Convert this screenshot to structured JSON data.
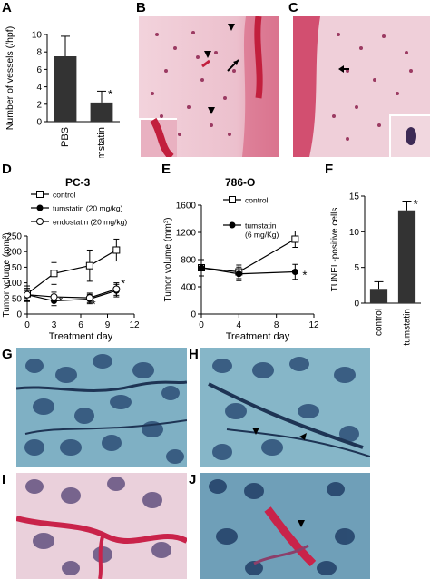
{
  "panel_labels": {
    "A": "A",
    "B": "B",
    "C": "C",
    "D": "D",
    "E": "E",
    "F": "F",
    "G": "G",
    "H": "H",
    "I": "I",
    "J": "J"
  },
  "colors": {
    "bar": "#333333",
    "he_pink": "#e7a6b8",
    "he_red": "#cc2a44",
    "ihc_blue": "#5a8ea8",
    "ihc_dark": "#203a5e"
  },
  "chart_data": [
    {
      "panel": "A",
      "type": "bar",
      "categories": [
        "PBS",
        "tumstatin"
      ],
      "values": [
        7.5,
        2.2
      ],
      "errors": [
        2.3,
        1.3
      ],
      "annotations": [
        "",
        "*"
      ],
      "ylabel": "Number of vessels (/hpf)",
      "ylim": [
        0,
        10
      ],
      "yticks": [
        "0",
        "2",
        "4",
        "6",
        "8",
        "10"
      ]
    },
    {
      "panel": "D",
      "type": "line",
      "title": "PC-3",
      "x": [
        0,
        3,
        7,
        10
      ],
      "series": [
        {
          "name": "control",
          "marker": "open-square",
          "values": [
            65,
            130,
            155,
            205
          ],
          "errors": [
            25,
            35,
            50,
            35
          ]
        },
        {
          "name": "tumstatin (20 mg/kg)",
          "marker": "filled-circle",
          "values": [
            62,
            42,
            48,
            75
          ],
          "errors": [
            20,
            15,
            15,
            20
          ]
        },
        {
          "name": "endostatin (20 mg/kg)",
          "marker": "open-circle",
          "values": [
            62,
            55,
            52,
            80
          ],
          "errors": [
            20,
            15,
            15,
            20
          ]
        }
      ],
      "star_labels": [
        "*",
        "*",
        "*"
      ],
      "xlabel": "Treatment day",
      "ylabel": "Tumor volume (mm³)",
      "xlim": [
        0,
        12
      ],
      "ylim": [
        0,
        250
      ],
      "xticks": [
        "0",
        "3",
        "6",
        "9",
        "12"
      ],
      "yticks": [
        "0",
        "50",
        "100",
        "150",
        "200",
        "250"
      ]
    },
    {
      "panel": "E",
      "type": "line",
      "title": "786-O",
      "x": [
        0,
        4,
        10
      ],
      "series": [
        {
          "name": "control",
          "marker": "open-square",
          "values": [
            680,
            620,
            1100
          ],
          "errors": [
            120,
            100,
            120
          ]
        },
        {
          "name": "tumstatin\n(6 mg/Kg)",
          "marker": "filled-circle",
          "values": [
            680,
            590,
            620
          ],
          "errors": [
            120,
            100,
            110
          ]
        }
      ],
      "star_labels": [
        "*"
      ],
      "xlabel": "Treatment day",
      "ylabel": "Tumor volume (mm³)",
      "xlim": [
        0,
        12
      ],
      "ylim": [
        0,
        1600
      ],
      "xticks": [
        "0",
        "4",
        "8",
        "12"
      ],
      "yticks": [
        "0",
        "400",
        "800",
        "1200",
        "1600"
      ]
    },
    {
      "panel": "F",
      "type": "bar",
      "categories": [
        "control",
        "tumstatin"
      ],
      "values": [
        2,
        13
      ],
      "errors": [
        1,
        1.3
      ],
      "annotations": [
        "",
        "*"
      ],
      "ylabel": "TUNEL-positive cells",
      "ylim": [
        0,
        15
      ],
      "yticks": [
        "0",
        "5",
        "10",
        "15"
      ]
    }
  ]
}
